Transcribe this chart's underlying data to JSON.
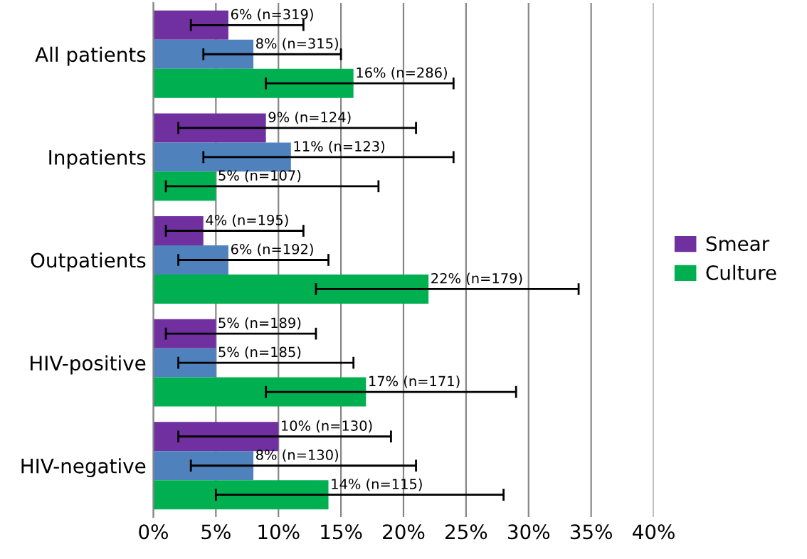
{
  "chart_data": {
    "type": "bar",
    "orientation": "horizontal",
    "categories": [
      "All patients",
      "Inpatients",
      "Outpatients",
      "HIV-positive",
      "HIV-negative"
    ],
    "series": [
      {
        "name": "Smear",
        "color": "#7030a0",
        "values": [
          6,
          9,
          4,
          5,
          10
        ],
        "errors": [
          [
            3,
            12
          ],
          [
            2,
            21
          ],
          [
            1,
            12
          ],
          [
            1,
            13
          ],
          [
            2,
            19
          ]
        ],
        "value_labels": [
          "6% (n=319)",
          "9% (n=124)",
          "4% (n=195)",
          "5% (n=189)",
          "10% (n=130)"
        ]
      },
      {
        "color": "#4f81bd",
        "values": [
          8,
          11,
          6,
          5,
          8
        ],
        "errors": [
          [
            4,
            15
          ],
          [
            4,
            24
          ],
          [
            2,
            14
          ],
          [
            2,
            16
          ],
          [
            3,
            21
          ]
        ],
        "value_labels": [
          "8% (n=315)",
          "11% (n=123)",
          "6% (n=192)",
          "5% (n=185)",
          "8% (n=130)"
        ]
      },
      {
        "name": "Culture",
        "color": "#00b050",
        "values": [
          16,
          5,
          22,
          17,
          14
        ],
        "errors": [
          [
            9,
            24
          ],
          [
            1,
            18
          ],
          [
            13,
            34
          ],
          [
            9,
            29
          ],
          [
            5,
            28
          ]
        ],
        "value_labels": [
          "16% (n=286)",
          "5% (n=107)",
          "22% (n=179)",
          "17% (n=171)",
          "14% (n=115)"
        ]
      }
    ],
    "xlim": [
      0,
      40
    ],
    "xticks": [
      {
        "value": 0,
        "label": "0%"
      },
      {
        "value": 5,
        "label": "5%"
      },
      {
        "value": 10,
        "label": "10%"
      },
      {
        "value": 15,
        "label": "15%"
      },
      {
        "value": 20,
        "label": "20%"
      },
      {
        "value": 25,
        "label": "25%"
      },
      {
        "value": 30,
        "label": "30%"
      },
      {
        "value": 35,
        "label": "35%"
      },
      {
        "value": 40,
        "label": "40%"
      }
    ],
    "grid": "x",
    "legend": "right"
  }
}
